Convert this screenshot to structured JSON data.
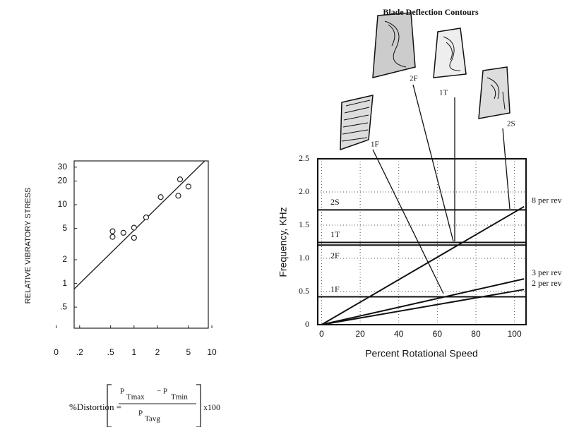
{
  "chart_data": [
    {
      "type": "scatter",
      "y_label": "RELATIVE VIBRATORY STRESS",
      "x_label_parts": [
        "%Distortion =",
        "P",
        "Tmax",
        "− P",
        "Tmin",
        "P",
        "Tavg",
        "x100"
      ],
      "log_x": true,
      "log_y": true,
      "xlim": [
        0.17,
        9
      ],
      "ylim": [
        0.27,
        36
      ],
      "xticks": [
        {
          "value": 0.1,
          "label": "0"
        },
        {
          "value": 0.2,
          "label": ".2"
        },
        {
          "value": 0.5,
          "label": ".5"
        },
        1,
        2,
        5,
        10
      ],
      "yticks": [
        {
          "value": 0.5,
          "label": ".5"
        },
        1,
        2,
        5,
        10,
        20,
        30
      ],
      "color": "#222222",
      "x": [
        0.53,
        0.53,
        0.73,
        1.0,
        1.0,
        1.43,
        2.2,
        3.7,
        3.9,
        5.0
      ],
      "values": [
        4.6,
        3.9,
        4.4,
        5.1,
        3.8,
        6.9,
        12.5,
        13,
        21,
        17
      ],
      "fit_line": {
        "x": [
          0.17,
          8.1
        ],
        "values": [
          0.85,
          36
        ]
      }
    },
    {
      "type": "line",
      "title": "Blade Deflection Contours",
      "x_label": "Percent  Rotational Speed",
      "y_label": "Frequency, KHz",
      "xlim": [
        -2,
        106
      ],
      "ylim": [
        0,
        2.5
      ],
      "xticks": [
        0,
        20,
        40,
        60,
        80,
        100
      ],
      "yticks": [
        0,
        0.5,
        {
          "value": 1,
          "label": "1.0"
        },
        1.5,
        {
          "value": 2,
          "label": "2.0"
        },
        2.5
      ],
      "grid": true,
      "color": "#111111",
      "modes": [
        {
          "name": "2S",
          "value": 1.73
        },
        {
          "name": "1T",
          "value": 1.24
        },
        {
          "name": "2F",
          "value": 1.2
        },
        {
          "name": "1F",
          "value": 0.42
        }
      ],
      "blade_labels": [
        "1F",
        "2F",
        "1T",
        "2S"
      ],
      "series": [
        {
          "name": "8 per rev",
          "x": [
            0,
            105
          ],
          "values": [
            0,
            1.78
          ]
        },
        {
          "name": "3 per rev",
          "x": [
            0,
            105
          ],
          "values": [
            0,
            0.69
          ]
        },
        {
          "name": "2 per rev",
          "x": [
            0,
            105
          ],
          "values": [
            0,
            0.53
          ]
        }
      ]
    }
  ]
}
